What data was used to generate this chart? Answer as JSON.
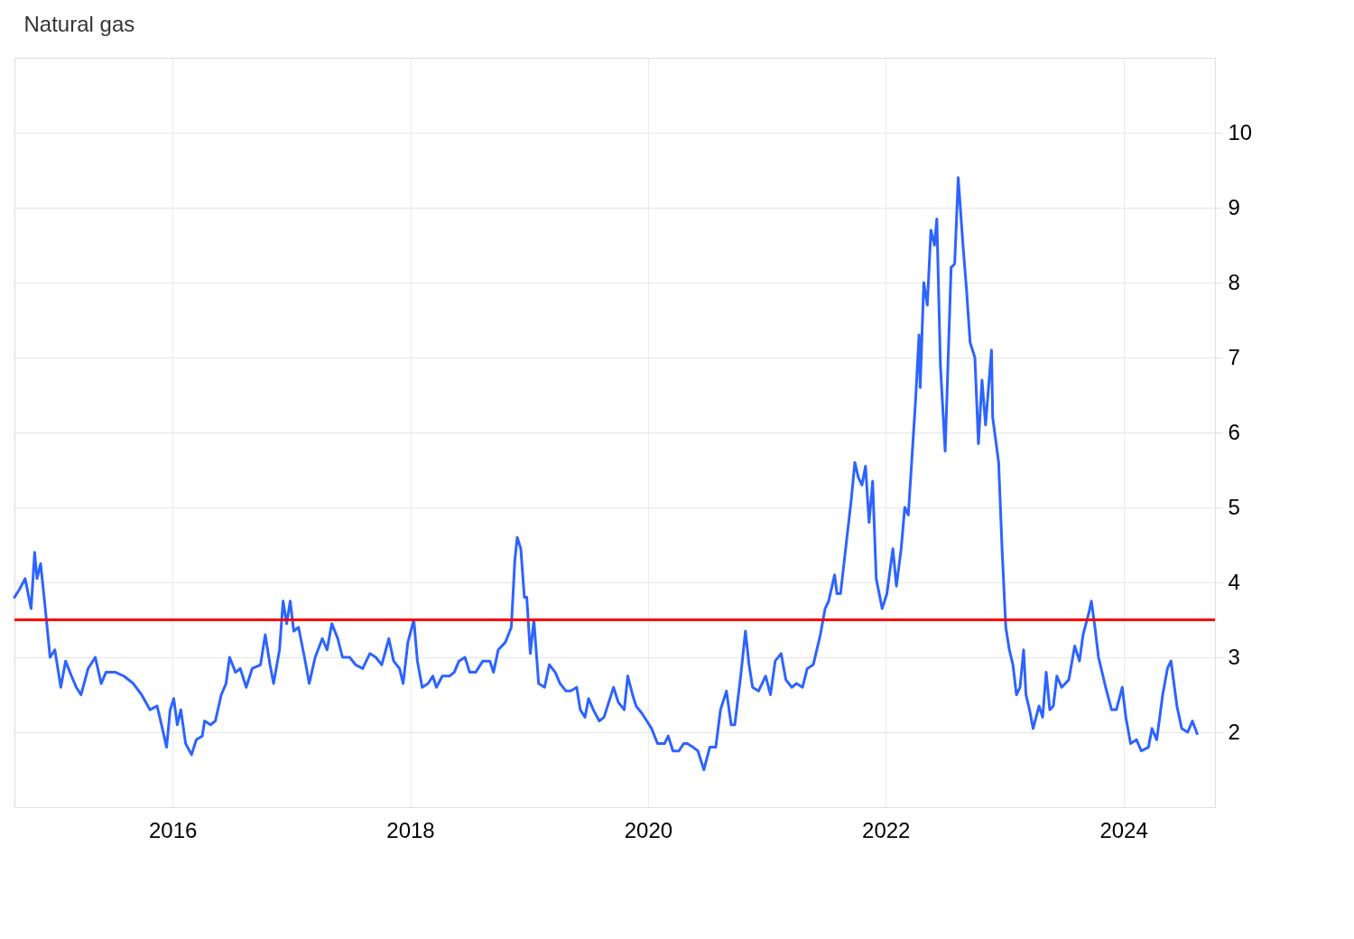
{
  "chart_data": {
    "type": "line",
    "title": "Natural gas",
    "x": [
      2014.67,
      2014.71,
      2014.76,
      2014.81,
      2014.84,
      2014.86,
      2014.89,
      2014.92,
      2014.97,
      2015.01,
      2015.06,
      2015.1,
      2015.15,
      2015.19,
      2015.23,
      2015.29,
      2015.35,
      2015.4,
      2015.44,
      2015.52,
      2015.59,
      2015.67,
      2015.74,
      2015.81,
      2015.87,
      2015.9,
      2015.95,
      2015.98,
      2016.01,
      2016.04,
      2016.07,
      2016.11,
      2016.16,
      2016.2,
      2016.25,
      2016.27,
      2016.32,
      2016.36,
      2016.41,
      2016.45,
      2016.48,
      2016.53,
      2016.57,
      2016.62,
      2016.67,
      2016.74,
      2016.78,
      2016.82,
      2016.85,
      2016.9,
      2016.93,
      2016.96,
      2016.99,
      2017.02,
      2017.06,
      2017.11,
      2017.15,
      2017.2,
      2017.26,
      2017.3,
      2017.34,
      2017.39,
      2017.43,
      2017.49,
      2017.54,
      2017.6,
      2017.66,
      2017.71,
      2017.76,
      2017.82,
      2017.86,
      2017.91,
      2017.94,
      2017.98,
      2018.03,
      2018.06,
      2018.1,
      2018.15,
      2018.19,
      2018.22,
      2018.27,
      2018.33,
      2018.37,
      2018.41,
      2018.46,
      2018.5,
      2018.55,
      2018.61,
      2018.67,
      2018.7,
      2018.74,
      2018.8,
      2018.85,
      2018.88,
      2018.9,
      2018.93,
      2018.96,
      2018.98,
      2019.01,
      2019.04,
      2019.08,
      2019.13,
      2019.17,
      2019.22,
      2019.26,
      2019.31,
      2019.35,
      2019.4,
      2019.43,
      2019.47,
      2019.5,
      2019.54,
      2019.59,
      2019.63,
      2019.68,
      2019.71,
      2019.75,
      2019.8,
      2019.83,
      2019.87,
      2019.9,
      2019.95,
      2019.99,
      2020.03,
      2020.08,
      2020.14,
      2020.17,
      2020.21,
      2020.26,
      2020.3,
      2020.33,
      2020.38,
      2020.42,
      2020.47,
      2020.52,
      2020.57,
      2020.61,
      2020.66,
      2020.7,
      2020.73,
      2020.78,
      2020.82,
      2020.85,
      2020.88,
      2020.93,
      2020.99,
      2021.03,
      2021.07,
      2021.12,
      2021.16,
      2021.21,
      2021.25,
      2021.3,
      2021.34,
      2021.39,
      2021.45,
      2021.49,
      2021.52,
      2021.57,
      2021.59,
      2021.62,
      2021.67,
      2021.71,
      2021.74,
      2021.77,
      2021.8,
      2021.83,
      2021.86,
      2021.89,
      2021.92,
      2021.97,
      2022.01,
      2022.06,
      2022.09,
      2022.13,
      2022.16,
      2022.19,
      2022.22,
      2022.25,
      2022.28,
      2022.29,
      2022.32,
      2022.35,
      2022.38,
      2022.41,
      2022.43,
      2022.46,
      2022.5,
      2022.55,
      2022.58,
      2022.61,
      2022.65,
      2022.68,
      2022.71,
      2022.75,
      2022.78,
      2022.81,
      2022.84,
      2022.89,
      2022.9,
      2022.95,
      2022.98,
      2023.01,
      2023.04,
      2023.07,
      2023.1,
      2023.13,
      2023.16,
      2023.18,
      2023.21,
      2023.24,
      2023.29,
      2023.32,
      2023.35,
      2023.38,
      2023.41,
      2023.44,
      2023.48,
      2023.54,
      2023.59,
      2023.63,
      2023.66,
      2023.71,
      2023.73,
      2023.76,
      2023.79,
      2023.85,
      2023.9,
      2023.94,
      2023.99,
      2024.02,
      2024.06,
      2024.11,
      2024.15,
      2024.21,
      2024.24,
      2024.28,
      2024.33,
      2024.37,
      2024.4,
      2024.45,
      2024.49,
      2024.54,
      2024.58,
      2024.62
    ],
    "series": [
      {
        "color": "#2d64ff",
        "values": [
          3.8,
          3.9,
          4.05,
          3.65,
          4.4,
          4.05,
          4.25,
          3.8,
          3.0,
          3.1,
          2.6,
          2.95,
          2.75,
          2.6,
          2.5,
          2.85,
          3.0,
          2.65,
          2.8,
          2.8,
          2.75,
          2.65,
          2.5,
          2.3,
          2.35,
          2.15,
          1.8,
          2.3,
          2.45,
          2.1,
          2.3,
          1.85,
          1.7,
          1.9,
          1.95,
          2.15,
          2.1,
          2.15,
          2.5,
          2.65,
          3.0,
          2.8,
          2.85,
          2.6,
          2.85,
          2.9,
          3.3,
          2.9,
          2.65,
          3.1,
          3.75,
          3.45,
          3.75,
          3.35,
          3.4,
          3.0,
          2.65,
          3.0,
          3.25,
          3.1,
          3.45,
          3.25,
          3.0,
          3.0,
          2.9,
          2.85,
          3.05,
          3.0,
          2.9,
          3.25,
          2.95,
          2.85,
          2.65,
          3.2,
          3.5,
          2.95,
          2.6,
          2.65,
          2.75,
          2.6,
          2.75,
          2.75,
          2.8,
          2.95,
          3.0,
          2.8,
          2.8,
          2.95,
          2.95,
          2.8,
          3.1,
          3.2,
          3.4,
          4.3,
          4.6,
          4.45,
          3.8,
          3.8,
          3.05,
          3.5,
          2.65,
          2.6,
          2.9,
          2.8,
          2.65,
          2.55,
          2.55,
          2.6,
          2.3,
          2.2,
          2.45,
          2.3,
          2.15,
          2.2,
          2.45,
          2.6,
          2.4,
          2.3,
          2.75,
          2.5,
          2.35,
          2.25,
          2.15,
          2.05,
          1.85,
          1.85,
          1.95,
          1.75,
          1.75,
          1.85,
          1.85,
          1.8,
          1.75,
          1.5,
          1.8,
          1.8,
          2.3,
          2.55,
          2.1,
          2.1,
          2.75,
          3.35,
          2.9,
          2.6,
          2.55,
          2.75,
          2.5,
          2.95,
          3.05,
          2.7,
          2.6,
          2.65,
          2.6,
          2.85,
          2.9,
          3.3,
          3.65,
          3.75,
          4.1,
          3.85,
          3.85,
          4.55,
          5.1,
          5.6,
          5.4,
          5.3,
          5.55,
          4.8,
          5.35,
          4.05,
          3.65,
          3.85,
          4.45,
          3.95,
          4.45,
          5.0,
          4.9,
          5.65,
          6.4,
          7.3,
          6.6,
          8.0,
          7.7,
          8.7,
          8.5,
          8.85,
          6.9,
          5.75,
          8.2,
          8.25,
          9.4,
          8.5,
          7.9,
          7.2,
          7.0,
          5.85,
          6.7,
          6.1,
          7.1,
          6.2,
          5.6,
          4.4,
          3.4,
          3.1,
          2.9,
          2.5,
          2.6,
          3.1,
          2.5,
          2.3,
          2.05,
          2.35,
          2.2,
          2.8,
          2.3,
          2.35,
          2.75,
          2.6,
          2.7,
          3.15,
          2.95,
          3.3,
          3.6,
          3.75,
          3.4,
          3.0,
          2.6,
          2.3,
          2.3,
          2.6,
          2.2,
          1.85,
          1.9,
          1.75,
          1.8,
          2.05,
          1.9,
          2.5,
          2.85,
          2.95,
          2.35,
          2.05,
          2.0,
          2.15,
          1.98
        ]
      }
    ],
    "xlim": [
      2014.67,
      2024.77
    ],
    "xticks": [
      2016,
      2018,
      2020,
      2022,
      2024
    ],
    "ylim": [
      1,
      11
    ],
    "yticks": [
      2,
      3,
      4,
      5,
      6,
      7,
      8,
      9,
      10
    ],
    "ref_lines": [
      {
        "axis": "y",
        "value": 3.5,
        "color": "#ff0000",
        "line_style": "solid"
      }
    ],
    "grid": true,
    "marker": "none",
    "line_style": "solid"
  }
}
